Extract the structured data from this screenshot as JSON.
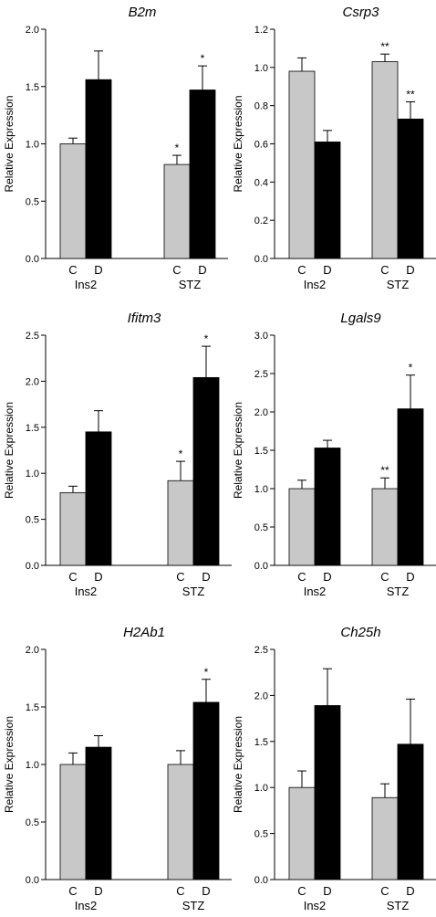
{
  "colors": {
    "control": "#c8c8c8",
    "diabetic": "#000000",
    "axis": "#000000"
  },
  "chart_data": [
    {
      "type": "bar",
      "title": "B2m",
      "ylabel": "Relative Expression",
      "ylim": [
        0,
        2.0
      ],
      "yticks": [
        "0.0",
        "0.5",
        "1.0",
        "1.5",
        "2.0"
      ],
      "groups": [
        "Ins2",
        "STZ"
      ],
      "categories": [
        "C",
        "D"
      ],
      "series": [
        {
          "values": [
            1.0,
            0.82
          ],
          "errors": [
            0.05,
            0.08
          ]
        },
        {
          "values": [
            1.56,
            1.47
          ],
          "errors": [
            0.25,
            0.21
          ]
        }
      ],
      "significance": [
        [
          "",
          "*"
        ],
        [
          "",
          "*"
        ]
      ]
    },
    {
      "type": "bar",
      "title": "Csrp3",
      "ylabel": "Relative Expression",
      "ylim": [
        0,
        1.2
      ],
      "yticks": [
        "0.0",
        "0.2",
        "0.4",
        "0.6",
        "0.8",
        "1.0",
        "1.2"
      ],
      "groups": [
        "Ins2",
        "STZ"
      ],
      "categories": [
        "C",
        "D"
      ],
      "series": [
        {
          "values": [
            0.98,
            1.03
          ],
          "errors": [
            0.07,
            0.04
          ]
        },
        {
          "values": [
            0.61,
            0.73
          ],
          "errors": [
            0.06,
            0.09
          ]
        }
      ],
      "significance": [
        [
          "",
          "**"
        ],
        [
          "",
          "**"
        ]
      ]
    },
    {
      "type": "bar",
      "title": "Ifitm3",
      "ylabel": "Relative Expression",
      "ylim": [
        0,
        2.5
      ],
      "yticks": [
        "0.0",
        "0.5",
        "1.0",
        "1.5",
        "2.0",
        "2.5"
      ],
      "groups": [
        "Ins2",
        "STZ"
      ],
      "categories": [
        "C",
        "D"
      ],
      "series": [
        {
          "values": [
            0.79,
            0.92
          ],
          "errors": [
            0.07,
            0.21
          ]
        },
        {
          "values": [
            1.45,
            2.04
          ],
          "errors": [
            0.23,
            0.34
          ]
        }
      ],
      "significance": [
        [
          "",
          "*"
        ],
        [
          "",
          "*"
        ]
      ]
    },
    {
      "type": "bar",
      "title": "Lgals9",
      "ylabel": "Relative Expression",
      "ylim": [
        0,
        3.0
      ],
      "yticks": [
        "0.0",
        "0.5",
        "1.0",
        "1.5",
        "2.0",
        "2.5",
        "3.0"
      ],
      "groups": [
        "Ins2",
        "STZ"
      ],
      "categories": [
        "C",
        "D"
      ],
      "series": [
        {
          "values": [
            1.0,
            1.0
          ],
          "errors": [
            0.11,
            0.14
          ]
        },
        {
          "values": [
            1.53,
            2.04
          ],
          "errors": [
            0.1,
            0.44
          ]
        }
      ],
      "significance": [
        [
          "",
          "**"
        ],
        [
          "",
          "*"
        ]
      ]
    },
    {
      "type": "bar",
      "title": "H2Ab1",
      "ylabel": "Relative Expression",
      "ylim": [
        0,
        2.0
      ],
      "yticks": [
        "0.0",
        "0.5",
        "1.0",
        "1.5",
        "2.0"
      ],
      "groups": [
        "Ins2",
        "STZ"
      ],
      "categories": [
        "C",
        "D"
      ],
      "series": [
        {
          "values": [
            1.0,
            1.0
          ],
          "errors": [
            0.1,
            0.12
          ]
        },
        {
          "values": [
            1.15,
            1.54
          ],
          "errors": [
            0.1,
            0.2
          ]
        }
      ],
      "significance": [
        [
          "",
          ""
        ],
        [
          "",
          "*"
        ]
      ]
    },
    {
      "type": "bar",
      "title": "Ch25h",
      "ylabel": "Relative Expression",
      "ylim": [
        0,
        2.5
      ],
      "yticks": [
        "0.0",
        "0.5",
        "1.0",
        "1.5",
        "2.0",
        "2.5"
      ],
      "groups": [
        "Ins2",
        "STZ"
      ],
      "categories": [
        "C",
        "D"
      ],
      "series": [
        {
          "values": [
            1.0,
            0.89
          ],
          "errors": [
            0.18,
            0.15
          ]
        },
        {
          "values": [
            1.89,
            1.47
          ],
          "errors": [
            0.4,
            0.49
          ]
        }
      ],
      "significance": [
        [
          "",
          ""
        ],
        [
          "",
          ""
        ]
      ]
    }
  ]
}
